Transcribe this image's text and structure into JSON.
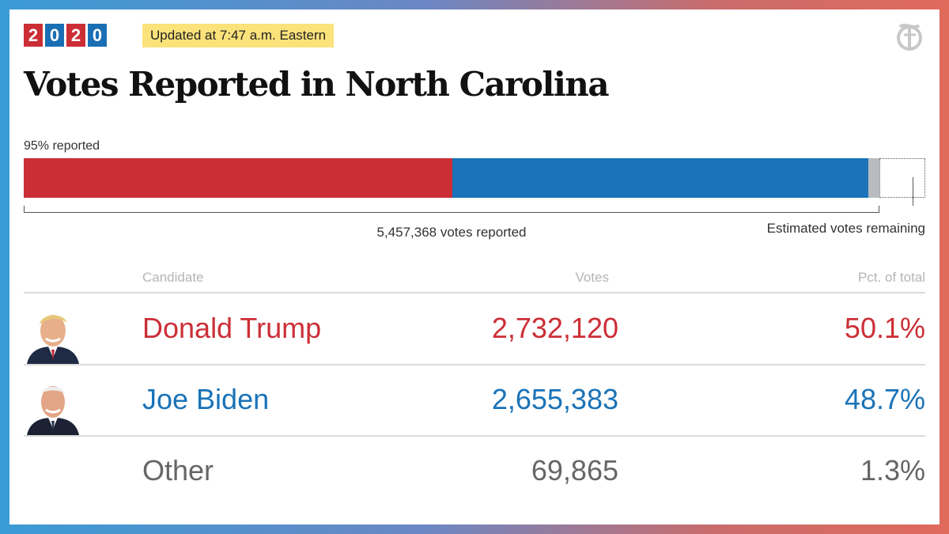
{
  "badge": {
    "digits": [
      "2",
      "0",
      "2",
      "0"
    ],
    "colors": [
      "#cc2e36",
      "#1a6fb4",
      "#cc2e36",
      "#1a6fb4"
    ]
  },
  "updated_text": "Updated at 7:47 a.m. Eastern",
  "logo": {
    "icon": "nyt-logo-icon"
  },
  "title": "Votes Reported in North Carolina",
  "chart_data": {
    "type": "bar",
    "title": "Votes Reported in North Carolina",
    "subtitle": "95% reported",
    "reported_pct": 95,
    "total_reported": 5457368,
    "total_reported_label": "5,457,368 votes reported",
    "remaining_label": "Estimated votes remaining",
    "series": [
      {
        "name": "Donald Trump",
        "value": 2732120,
        "color": "#cc2e36"
      },
      {
        "name": "Joe Biden",
        "value": 2655383,
        "color": "#1a73b8"
      },
      {
        "name": "Other",
        "value": 69865,
        "color": "#b8bcc0"
      }
    ]
  },
  "table": {
    "headers": {
      "candidate": "Candidate",
      "votes": "Votes",
      "pct": "Pct. of total"
    },
    "rows": [
      {
        "candidate": "Donald Trump",
        "votes": "2,732,120",
        "pct": "50.1%",
        "color": "#cc2e36",
        "photo": "trump-photo"
      },
      {
        "candidate": "Joe Biden",
        "votes": "2,655,383",
        "pct": "48.7%",
        "color": "#1a73b8",
        "photo": "biden-photo"
      },
      {
        "candidate": "Other",
        "votes": "69,865",
        "pct": "1.3%",
        "color": "#666666",
        "photo": ""
      }
    ]
  }
}
